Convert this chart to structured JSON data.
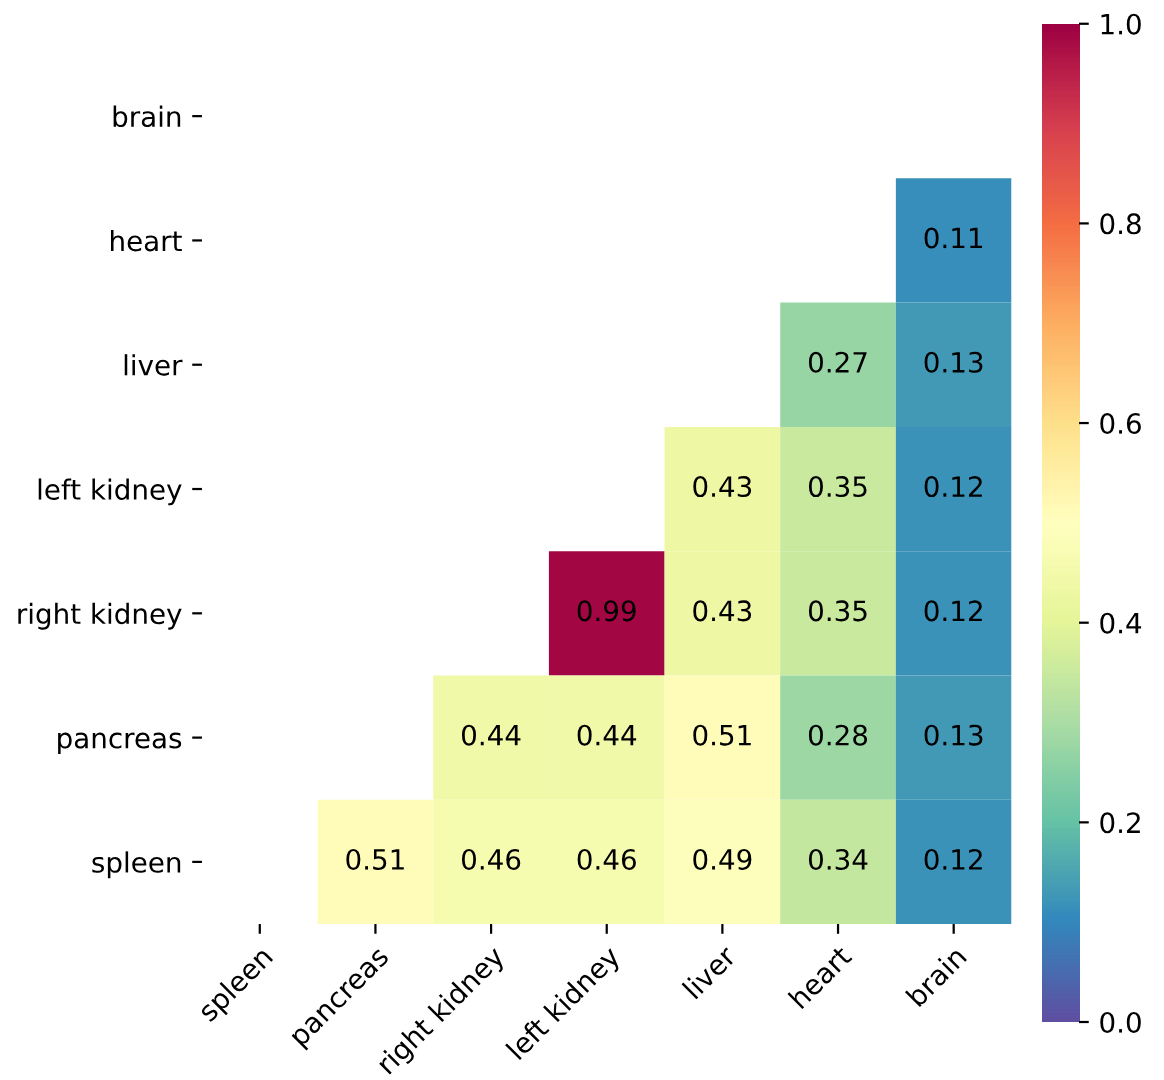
{
  "chart_data": {
    "type": "heatmap",
    "categories": [
      "spleen",
      "pancreas",
      "right kidney",
      "left kidney",
      "liver",
      "heart",
      "brain"
    ],
    "y_categories": [
      "brain",
      "heart",
      "liver",
      "left kidney",
      "right kidney",
      "pancreas",
      "spleen"
    ],
    "cells": [
      [
        null,
        null,
        null,
        null,
        null,
        null,
        null
      ],
      [
        null,
        null,
        null,
        null,
        null,
        null,
        0.11
      ],
      [
        null,
        null,
        null,
        null,
        null,
        0.27,
        0.13
      ],
      [
        null,
        null,
        null,
        null,
        0.43,
        0.35,
        0.12
      ],
      [
        null,
        null,
        null,
        0.99,
        0.43,
        0.35,
        0.12
      ],
      [
        null,
        null,
        0.44,
        0.44,
        0.51,
        0.28,
        0.13
      ],
      [
        null,
        0.51,
        0.46,
        0.46,
        0.49,
        0.34,
        0.12
      ]
    ],
    "clim": [
      0,
      1
    ],
    "cticks": [
      {
        "value": 0,
        "label": "0.0"
      },
      {
        "value": 0.2,
        "label": "0.2"
      },
      {
        "value": 0.4,
        "label": "0.4"
      },
      {
        "value": 0.6,
        "label": "0.6"
      },
      {
        "value": 0.8,
        "label": "0.8"
      },
      {
        "value": 1,
        "label": "1.0"
      }
    ],
    "data_labels": true
  }
}
